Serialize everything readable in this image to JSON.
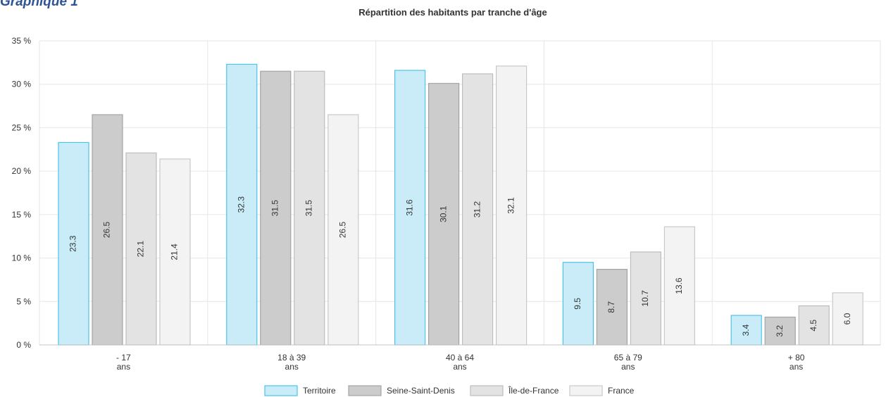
{
  "heading": "Graphique 1",
  "chart_data": {
    "type": "bar",
    "title": "Répartition des habitants par tranche d'âge",
    "xlabel": "",
    "ylabel": "",
    "ylim": [
      0,
      35
    ],
    "yticks": [
      0,
      5,
      10,
      15,
      20,
      25,
      30,
      35
    ],
    "ytick_labels": [
      "0 %",
      "5 %",
      "10 %",
      "15 %",
      "20 %",
      "25 %",
      "30 %",
      "35 %"
    ],
    "categories": [
      [
        "- 17",
        "ans"
      ],
      [
        "18 à 39",
        "ans"
      ],
      [
        "40 à 64",
        "ans"
      ],
      [
        "65 à 79",
        "ans"
      ],
      [
        "+ 80",
        "ans"
      ]
    ],
    "series": [
      {
        "name": "Territoire",
        "fill": "#c9ecf8",
        "stroke": "#4cc3e8",
        "values": [
          23.3,
          32.3,
          31.6,
          9.5,
          3.4
        ],
        "labels": [
          "23.3",
          "32.3",
          "31.6",
          "9.5",
          "3.4"
        ]
      },
      {
        "name": "Seine-Saint-Denis",
        "fill": "#cccccc",
        "stroke": "#a3a3a3",
        "values": [
          26.5,
          31.5,
          30.1,
          8.7,
          3.2
        ],
        "labels": [
          "26.5",
          "31.5",
          "30.1",
          "8.7",
          "3.2"
        ]
      },
      {
        "name": "Île-de-France",
        "fill": "#e3e3e3",
        "stroke": "#bdbdbd",
        "values": [
          22.1,
          31.5,
          31.2,
          10.7,
          4.5
        ],
        "labels": [
          "22.1",
          "31.5",
          "31.2",
          "10.7",
          "4.5"
        ]
      },
      {
        "name": "France",
        "fill": "#f3f3f3",
        "stroke": "#c9c9c9",
        "values": [
          21.4,
          26.5,
          32.1,
          13.6,
          6.0
        ],
        "labels": [
          "21.4",
          "26.5",
          "32.1",
          "13.6",
          "6.0"
        ]
      }
    ],
    "grid": true,
    "legend": "bottom"
  }
}
